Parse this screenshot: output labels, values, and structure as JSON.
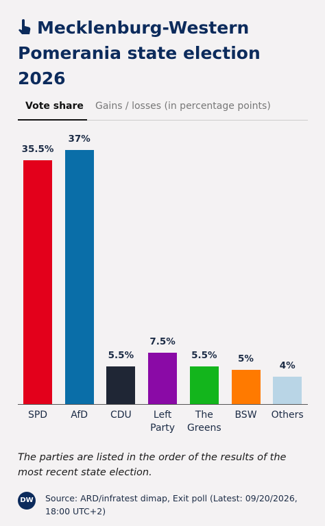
{
  "header": {
    "title": "Mecklenburg-Western Pomerania state election 2026"
  },
  "tabs": [
    "Vote share",
    "Gains / losses (in percentage points)"
  ],
  "chart_data": {
    "type": "bar",
    "categories": [
      "SPD",
      "AfD",
      "CDU",
      "Left Party",
      "The Greens",
      "BSW",
      "Others"
    ],
    "values": [
      35.5,
      37,
      5.5,
      7.5,
      5.5,
      5,
      4
    ],
    "value_labels": [
      "35.5%",
      "37%",
      "5.5%",
      "7.5%",
      "5.5%",
      "5%",
      "4%"
    ],
    "colors": [
      "#e3001b",
      "#0a6ea8",
      "#1f2635",
      "#8a0aa6",
      "#13b51c",
      "#ff7a00",
      "#b9d5e6"
    ]
  },
  "note": "The parties are listed in the order of the results of the most recent state election.",
  "footer": {
    "logo": "DW",
    "source": "Source: ARD/infratest dimap, Exit poll (Latest: 09/20/2026, 18:00 UTC+2)"
  }
}
